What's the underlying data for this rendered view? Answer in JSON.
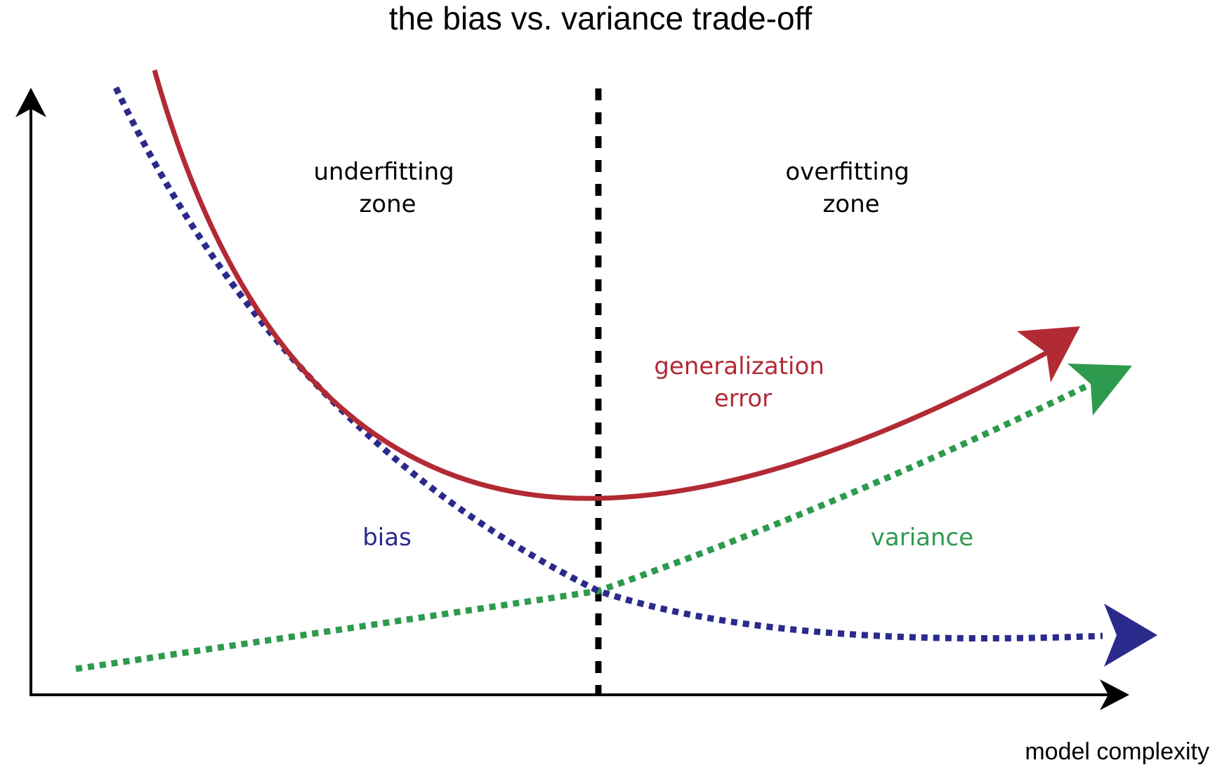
{
  "title": "the bias vs. variance trade-off",
  "x_axis_label": "model complexity",
  "zones": {
    "underfitting": [
      "underfitting",
      "zone"
    ],
    "overfitting": [
      "overfitting",
      "zone"
    ]
  },
  "curves": {
    "generalization_error": {
      "label": [
        "generalization",
        "error"
      ],
      "color": "#b22a33",
      "line_style": "solid"
    },
    "bias": {
      "label": "bias",
      "color": "#2b2a8c",
      "line_style": "dotted"
    },
    "variance": {
      "label": "variance",
      "color": "#2e9a4e",
      "line_style": "dotted"
    }
  },
  "divider": {
    "line_style": "dashed",
    "color": "#000000"
  }
}
